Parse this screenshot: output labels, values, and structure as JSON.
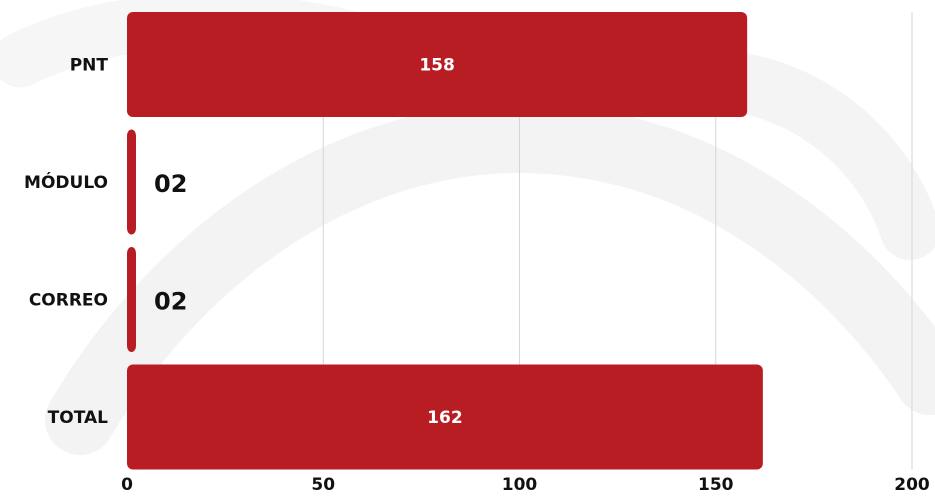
{
  "chart_data": {
    "type": "bar",
    "orientation": "horizontal",
    "categories": [
      "PNT",
      "MÓDULO",
      "CORREO",
      "TOTAL"
    ],
    "values": [
      158,
      2,
      2,
      162
    ],
    "value_labels": [
      "158",
      "02",
      "02",
      "162"
    ],
    "title": "",
    "xlabel": "",
    "ylabel": "",
    "xlim": [
      0,
      200
    ],
    "x_ticks": [
      0,
      50,
      100,
      150,
      200
    ],
    "grid": "vertical",
    "legend": "none",
    "bar_color": "#b91d24",
    "label_inside_color": "#ffffff",
    "label_outside_color": "#111111",
    "gridline_color": "#d6d6d6",
    "text_color": "#111111"
  }
}
